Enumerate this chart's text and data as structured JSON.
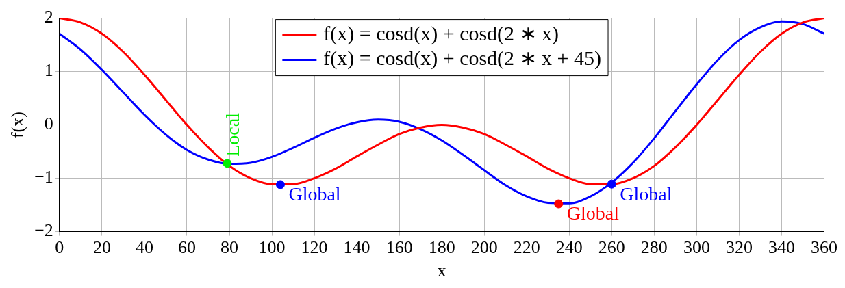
{
  "chart_data": {
    "type": "line",
    "xlabel": "x",
    "ylabel": "f(x)",
    "x": [
      0,
      10,
      20,
      30,
      40,
      50,
      60,
      70,
      80,
      90,
      100,
      110,
      120,
      130,
      140,
      150,
      160,
      170,
      180,
      190,
      200,
      210,
      220,
      230,
      240,
      250,
      260,
      270,
      280,
      290,
      300,
      310,
      320,
      330,
      340,
      350,
      360
    ],
    "series": [
      {
        "name": "f(x) = cosd(x) + cosd(2 ∗ x)",
        "color": "#ff0000",
        "values": [
          2,
          1.92,
          1.71,
          1.37,
          0.94,
          0.47,
          0,
          -0.42,
          -0.77,
          -1,
          -1.11,
          -1.11,
          -1,
          -0.82,
          -0.59,
          -0.37,
          -0.17,
          -0.05,
          0,
          -0.05,
          -0.17,
          -0.37,
          -0.59,
          -0.82,
          -1,
          -1.11,
          -1.11,
          -1,
          -0.77,
          -0.42,
          0,
          0.47,
          0.94,
          1.37,
          1.71,
          1.92,
          2
        ]
      },
      {
        "name": "f(x) = cosd(x) + cosd(2 ∗ x + 45)",
        "color": "#0000ff",
        "values": [
          1.71,
          1.41,
          1.03,
          0.61,
          0.19,
          -0.18,
          -0.47,
          -0.65,
          -0.73,
          -0.71,
          -0.6,
          -0.43,
          -0.24,
          -0.07,
          0.05,
          0.1,
          0.06,
          -0.08,
          -0.29,
          -0.56,
          -0.85,
          -1.13,
          -1.34,
          -1.46,
          -1.47,
          -1.34,
          -1.08,
          -0.71,
          -0.25,
          0.26,
          0.76,
          1.22,
          1.59,
          1.83,
          1.94,
          1.89,
          1.71
        ]
      },
      {
        "type": "scatter",
        "marker": "circle",
        "x": [
          79,
          104,
          235,
          260
        ],
        "values": [
          -0.72,
          -1.12,
          -1.48,
          -1.11
        ],
        "colors": [
          "#00ee00",
          "#0000ff",
          "#ff0000",
          "#0000ff"
        ]
      }
    ],
    "annotations": [
      {
        "text": "Local",
        "x": 79,
        "y": -0.72
      },
      {
        "text": "Global",
        "x": 104,
        "y": -1.12
      },
      {
        "text": "Global",
        "x": 235,
        "y": -1.48
      },
      {
        "text": "Global",
        "x": 260,
        "y": -1.11
      }
    ],
    "xlim": [
      0,
      360
    ],
    "xticks": [
      0,
      20,
      40,
      60,
      80,
      100,
      120,
      140,
      160,
      180,
      200,
      220,
      240,
      260,
      280,
      300,
      320,
      340,
      360
    ],
    "ylim": [
      -2,
      2
    ],
    "yticks": [
      -2,
      -1,
      0,
      1,
      2
    ],
    "grid": true,
    "legend": "top",
    "line_style": "solid"
  }
}
